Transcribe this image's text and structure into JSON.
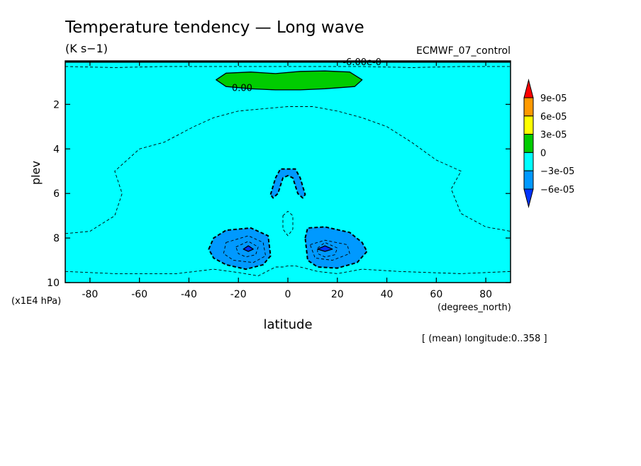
{
  "chart_data": {
    "type": "heatmap",
    "title": "Temperature tendency — Long wave",
    "units": "(K s−1)",
    "dataset": "ECMWF_07_control",
    "xlabel": "latitude",
    "x_units": "(degrees_north)",
    "ylabel": "plev",
    "y_units": "(x1E4 hPa)",
    "footnote": "[ (mean) longitude:0..358 ]",
    "xlim": [
      -90,
      90
    ],
    "ylim": [
      10,
      0.05
    ],
    "x_ticks": [
      -80,
      -60,
      -40,
      -20,
      0,
      20,
      40,
      60,
      80
    ],
    "y_ticks": [
      2,
      4,
      6,
      8,
      10
    ],
    "contour_labels": [
      {
        "text": "0.00",
        "x": -18.5,
        "y": 1.25
      },
      {
        "text": "-6.00e-0",
        "x": 30,
        "y": 0.08
      }
    ],
    "colorbar": {
      "labels": [
        "9e-05",
        "6e-05",
        "3e-05",
        "0",
        "−3e-05",
        "−6e-05"
      ],
      "levels": [
        9e-05,
        6e-05,
        3e-05,
        0,
        -3e-05,
        -6e-05
      ],
      "colors": [
        "#ff0000",
        "#ff9a00",
        "#ffff00",
        "#00cc00",
        "#00ffff",
        "#0099ff",
        "#0033ff"
      ]
    },
    "regions": [
      {
        "name": "positive-band",
        "fill": "#00cc00",
        "dash": false,
        "points": [
          [
            -29,
            0.9
          ],
          [
            -25,
            0.6
          ],
          [
            -15,
            0.55
          ],
          [
            -5,
            0.62
          ],
          [
            5,
            0.52
          ],
          [
            15,
            0.5
          ],
          [
            25,
            0.55
          ],
          [
            30,
            0.9
          ],
          [
            27,
            1.2
          ],
          [
            15,
            1.3
          ],
          [
            5,
            1.35
          ],
          [
            -5,
            1.35
          ],
          [
            -15,
            1.3
          ],
          [
            -25,
            1.2
          ]
        ]
      },
      {
        "name": "blob-center",
        "fill": "#0099ff",
        "dash": true,
        "points": [
          [
            -7,
            6.05
          ],
          [
            -5,
            5.3
          ],
          [
            -3,
            4.9
          ],
          [
            3,
            4.9
          ],
          [
            5,
            5.3
          ],
          [
            7,
            6.05
          ],
          [
            6,
            6.2
          ],
          [
            4,
            6.0
          ],
          [
            2,
            5.3
          ],
          [
            0,
            5.2
          ],
          [
            -2,
            5.3
          ],
          [
            -4,
            6.0
          ],
          [
            -6,
            6.2
          ]
        ]
      },
      {
        "name": "blob-left",
        "fill": "#0099ff",
        "dash": true,
        "points": [
          [
            -32,
            8.5
          ],
          [
            -30,
            8.0
          ],
          [
            -25,
            7.65
          ],
          [
            -15,
            7.55
          ],
          [
            -8,
            7.9
          ],
          [
            -7,
            8.8
          ],
          [
            -10,
            9.2
          ],
          [
            -17,
            9.4
          ],
          [
            -25,
            9.2
          ],
          [
            -30,
            8.9
          ]
        ]
      },
      {
        "name": "blob-right",
        "fill": "#0099ff",
        "dash": true,
        "points": [
          [
            7,
            8.0
          ],
          [
            8,
            7.55
          ],
          [
            15,
            7.5
          ],
          [
            25,
            7.75
          ],
          [
            30,
            8.2
          ],
          [
            32,
            8.6
          ],
          [
            28,
            9.1
          ],
          [
            20,
            9.35
          ],
          [
            12,
            9.3
          ],
          [
            8,
            9.0
          ]
        ]
      },
      {
        "name": "core-left",
        "fill": "#0033ff",
        "dash": false,
        "points": [
          [
            -18,
            8.5
          ],
          [
            -16,
            8.35
          ],
          [
            -14,
            8.5
          ],
          [
            -16,
            8.6
          ]
        ]
      },
      {
        "name": "core-right",
        "fill": "#0033ff",
        "dash": false,
        "points": [
          [
            12,
            8.5
          ],
          [
            15,
            8.35
          ],
          [
            18,
            8.5
          ],
          [
            15,
            8.6
          ]
        ]
      }
    ],
    "dashed_contours": [
      [
        [
          -90,
          7.8
        ],
        [
          -80,
          7.7
        ],
        [
          -70,
          7.0
        ],
        [
          -67,
          6.0
        ],
        [
          -70,
          5.0
        ],
        [
          -60,
          4.0
        ],
        [
          -50,
          3.7
        ],
        [
          -38,
          3.0
        ],
        [
          -30,
          2.6
        ],
        [
          -20,
          2.3
        ],
        [
          -10,
          2.2
        ],
        [
          0,
          2.1
        ],
        [
          10,
          2.1
        ],
        [
          20,
          2.3
        ],
        [
          30,
          2.6
        ],
        [
          40,
          3.0
        ],
        [
          50,
          3.7
        ],
        [
          60,
          4.5
        ],
        [
          70,
          5.0
        ],
        [
          66,
          5.8
        ],
        [
          70,
          6.9
        ],
        [
          80,
          7.5
        ],
        [
          90,
          7.7
        ]
      ],
      [
        [
          -90,
          0.3
        ],
        [
          -70,
          0.35
        ],
        [
          -50,
          0.3
        ],
        [
          -30,
          0.3
        ],
        [
          -15,
          0.3
        ],
        [
          0,
          0.3
        ],
        [
          15,
          0.3
        ],
        [
          30,
          0.3
        ],
        [
          50,
          0.35
        ],
        [
          70,
          0.3
        ],
        [
          90,
          0.3
        ]
      ],
      [
        [
          -2,
          7.0
        ],
        [
          0,
          6.8
        ],
        [
          2,
          7.0
        ],
        [
          2,
          7.6
        ],
        [
          0,
          7.9
        ],
        [
          -2,
          7.6
        ]
      ],
      [
        [
          -25,
          8.2
        ],
        [
          -16,
          7.9
        ],
        [
          -10,
          8.2
        ],
        [
          -9,
          8.8
        ],
        [
          -14,
          9.1
        ],
        [
          -22,
          9.0
        ],
        [
          -26,
          8.7
        ]
      ],
      [
        [
          -21,
          8.4
        ],
        [
          -16,
          8.15
        ],
        [
          -12,
          8.4
        ],
        [
          -13,
          8.75
        ],
        [
          -17,
          8.85
        ],
        [
          -20,
          8.7
        ]
      ],
      [
        [
          9,
          8.3
        ],
        [
          15,
          8.1
        ],
        [
          24,
          8.3
        ],
        [
          25,
          8.7
        ],
        [
          18,
          9.0
        ],
        [
          11,
          8.9
        ]
      ],
      [
        [
          12,
          8.45
        ],
        [
          15,
          8.2
        ],
        [
          20,
          8.45
        ],
        [
          19,
          8.75
        ],
        [
          15,
          8.85
        ],
        [
          12,
          8.7
        ]
      ],
      [
        [
          -90,
          9.5
        ],
        [
          -70,
          9.6
        ],
        [
          -45,
          9.6
        ],
        [
          -30,
          9.4
        ],
        [
          -20,
          9.55
        ],
        [
          -12,
          9.7
        ],
        [
          -5,
          9.3
        ],
        [
          -2,
          9.3
        ],
        [
          0,
          9.25
        ],
        [
          3,
          9.25
        ],
        [
          5,
          9.3
        ],
        [
          12,
          9.5
        ],
        [
          20,
          9.6
        ],
        [
          30,
          9.4
        ],
        [
          45,
          9.5
        ],
        [
          70,
          9.6
        ],
        [
          90,
          9.5
        ]
      ]
    ]
  }
}
